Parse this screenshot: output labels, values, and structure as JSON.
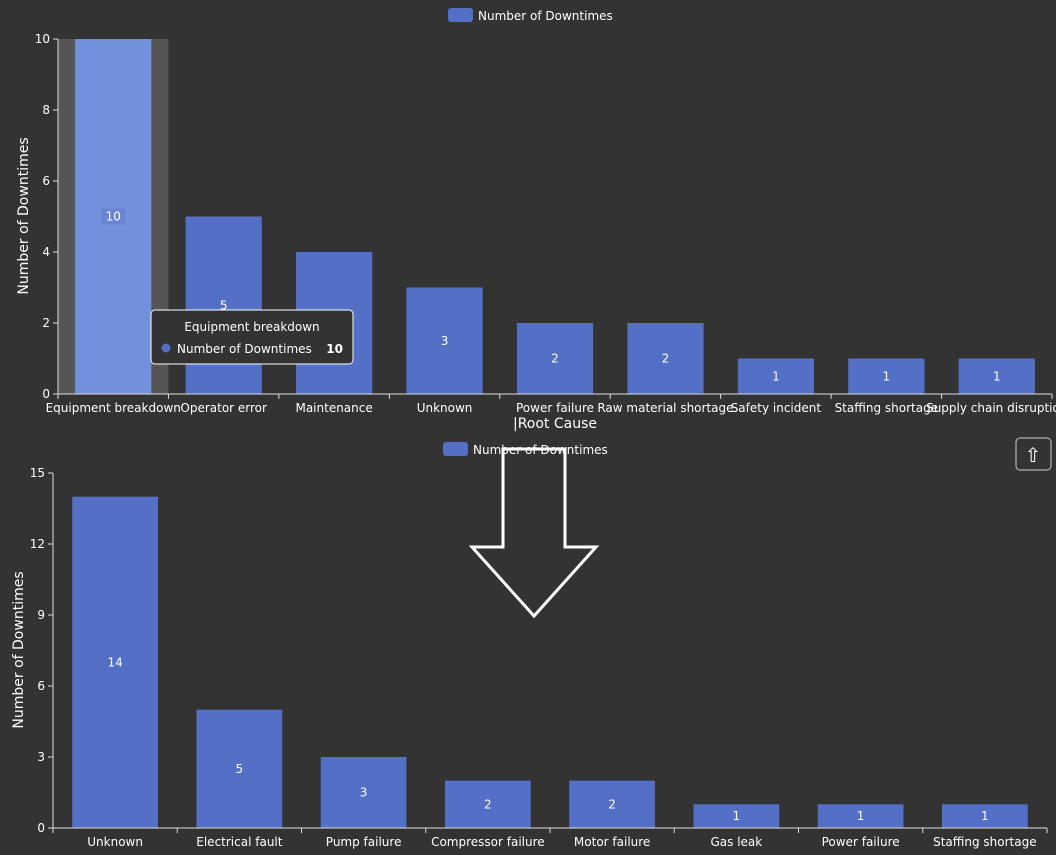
{
  "chart_data": [
    {
      "type": "bar",
      "legend": "Number of Downtimes",
      "ylabel": "Number of Downtimes",
      "xlabel": "|Root Cause",
      "ylim": [
        0,
        10
      ],
      "yticks": [
        0,
        2,
        4,
        6,
        8,
        10
      ],
      "categories": [
        "Equipment breakdown",
        "Operator error",
        "Maintenance",
        "Unknown",
        "Power failure",
        "Raw material shortage",
        "Safety incident",
        "Staffing shortage",
        "Supply chain disruption"
      ],
      "values": [
        10,
        5,
        4,
        3,
        2,
        2,
        1,
        1,
        1
      ],
      "color": "#5470c6",
      "highlight_color": "#7390dd",
      "tooltip": {
        "title": "Equipment breakdown",
        "series": "Number of Downtimes",
        "value": "10"
      }
    },
    {
      "type": "bar",
      "legend": "Number of Downtimes",
      "ylabel": "Number of Downtimes",
      "xlabel": "",
      "ylim": [
        0,
        15
      ],
      "yticks": [
        0,
        3,
        6,
        9,
        12,
        15
      ],
      "categories": [
        "Unknown",
        "Electrical fault",
        "Pump failure",
        "Compressor failure",
        "Motor failure",
        "Gas leak",
        "Power failure",
        "Staffing shortage"
      ],
      "values": [
        14,
        5,
        3,
        2,
        2,
        1,
        1,
        1
      ],
      "color": "#5470c6"
    }
  ],
  "ui": {
    "scroll_top_icon": "up-arrow-icon",
    "scroll_top_glyph": "⇧",
    "transform_arrow_icon": "down-arrow-icon"
  }
}
